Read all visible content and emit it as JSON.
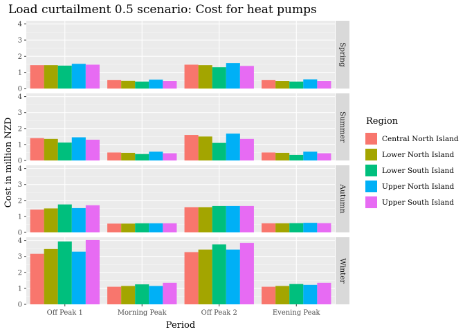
{
  "chart_data": {
    "type": "bar",
    "title": "Load curtailment 0.5 scenario: Cost for heat pumps",
    "xlabel": "Period",
    "ylabel": "Cost in million NZD",
    "ylim": [
      0,
      4.2
    ],
    "yticks": [
      0,
      1,
      2,
      3,
      4
    ],
    "categories": [
      "Off Peak 1",
      "Morning Peak",
      "Off Peak 2",
      "Evening Peak"
    ],
    "legend": {
      "title": "Region",
      "placement": "right"
    },
    "grid": true,
    "series_names": [
      "Central North Island",
      "Lower North Island",
      "Lower South Island",
      "Upper North Island",
      "Upper South Island"
    ],
    "colors": [
      "#F8766D",
      "#A3A500",
      "#00BF7D",
      "#00B0F6",
      "#E76BF3"
    ],
    "facets": [
      {
        "label": "Spring",
        "values": [
          [
            1.45,
            0.52,
            1.48,
            0.52
          ],
          [
            1.45,
            0.48,
            1.45,
            0.47
          ],
          [
            1.42,
            0.43,
            1.32,
            0.43
          ],
          [
            1.53,
            0.55,
            1.58,
            0.57
          ],
          [
            1.48,
            0.47,
            1.4,
            0.47
          ]
        ]
      },
      {
        "label": "Summer",
        "values": [
          [
            1.4,
            0.5,
            1.6,
            0.5
          ],
          [
            1.35,
            0.48,
            1.5,
            0.48
          ],
          [
            1.12,
            0.4,
            1.1,
            0.35
          ],
          [
            1.45,
            0.55,
            1.68,
            0.55
          ],
          [
            1.3,
            0.45,
            1.35,
            0.45
          ]
        ]
      },
      {
        "label": "Autumn",
        "values": [
          [
            1.43,
            0.55,
            1.58,
            0.57
          ],
          [
            1.5,
            0.55,
            1.58,
            0.57
          ],
          [
            1.75,
            0.57,
            1.65,
            0.58
          ],
          [
            1.52,
            0.57,
            1.65,
            0.6
          ],
          [
            1.7,
            0.57,
            1.65,
            0.58
          ]
        ]
      },
      {
        "label": "Winter",
        "values": [
          [
            3.17,
            1.1,
            3.27,
            1.1
          ],
          [
            3.47,
            1.15,
            3.43,
            1.15
          ],
          [
            3.93,
            1.25,
            3.75,
            1.27
          ],
          [
            3.3,
            1.15,
            3.43,
            1.22
          ],
          [
            4.03,
            1.35,
            3.85,
            1.35
          ]
        ]
      }
    ]
  }
}
